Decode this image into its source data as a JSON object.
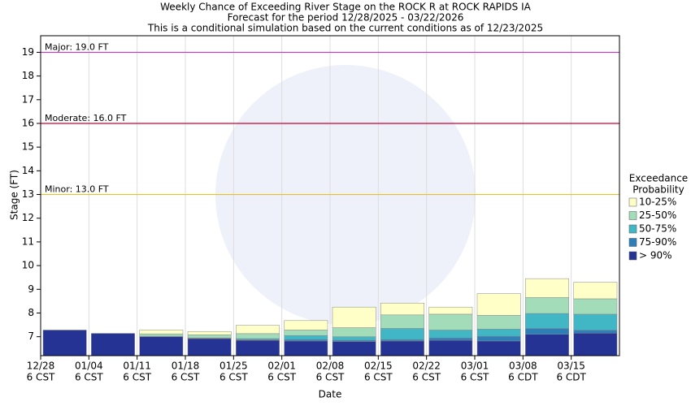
{
  "chart_data": {
    "type": "bar",
    "title": "Weekly Chance of Exceeding River Stage on the ROCK R at ROCK RAPIDS IA",
    "subtitle": [
      "Forecast for the period 12/28/2025 - 03/22/2026",
      "This is a conditional simulation based on the current conditions as of 12/23/2025"
    ],
    "y_label": "Stage (FT)",
    "x_label": "Date",
    "legend_title": [
      "Exceedance",
      "Probability"
    ],
    "categories": [
      [
        "12/28",
        "6 CST"
      ],
      [
        "01/04",
        "6 CST"
      ],
      [
        "01/11",
        "6 CST"
      ],
      [
        "01/18",
        "6 CST"
      ],
      [
        "01/25",
        "6 CST"
      ],
      [
        "02/01",
        "6 CST"
      ],
      [
        "02/08",
        "6 CST"
      ],
      [
        "02/15",
        "6 CST"
      ],
      [
        "02/22",
        "6 CST"
      ],
      [
        "03/01",
        "6 CST"
      ],
      [
        "03/08",
        "6 CDT"
      ],
      [
        "03/15",
        "6 CDT"
      ]
    ],
    "series": [
      {
        "name": "10-25%",
        "color": "#ffffc8",
        "values": [
          7.28,
          7.14,
          7.28,
          7.22,
          7.48,
          7.68,
          8.25,
          8.42,
          8.25,
          8.82,
          9.45,
          9.3
        ]
      },
      {
        "name": "25-50%",
        "color": "#a3dcb9",
        "values": [
          7.28,
          7.14,
          7.12,
          7.08,
          7.13,
          7.28,
          7.38,
          7.92,
          7.95,
          7.9,
          8.65,
          8.6
        ]
      },
      {
        "name": "50-75%",
        "color": "#41b6c4",
        "values": [
          7.28,
          7.14,
          7.02,
          6.95,
          6.92,
          7.05,
          7.0,
          7.35,
          7.28,
          7.32,
          7.98,
          7.95
        ]
      },
      {
        "name": "75-90%",
        "color": "#2c7fb8",
        "values": [
          7.28,
          7.14,
          7.0,
          6.93,
          6.87,
          6.88,
          6.85,
          6.88,
          6.95,
          7.02,
          7.35,
          7.28
        ]
      },
      {
        "name": "> 90%",
        "color": "#253494",
        "values": [
          7.28,
          7.14,
          7.0,
          6.92,
          6.85,
          6.82,
          6.8,
          6.82,
          6.85,
          6.82,
          7.1,
          7.15
        ]
      }
    ],
    "thresholds": [
      {
        "label": "Major: 19.0 FT",
        "value": 19,
        "color": "#cc33cc"
      },
      {
        "label": "Moderate: 16.0 FT",
        "value": 16,
        "color": "#cc0033"
      },
      {
        "label": "Minor: 13.0 FT",
        "value": 13,
        "color": "#e6c229"
      }
    ],
    "ylim": [
      6.2,
      19.7
    ],
    "yticks": [
      7,
      8,
      9,
      10,
      11,
      12,
      13,
      14,
      15,
      16,
      17,
      18,
      19
    ]
  }
}
